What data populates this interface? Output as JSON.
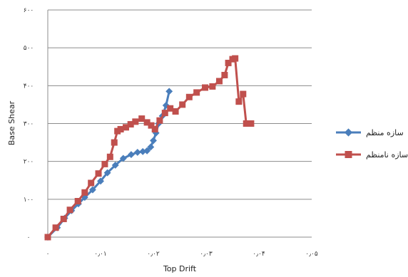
{
  "chart_data": {
    "type": "line",
    "xlabel": "Top Drift",
    "ylabel": "Base Shear",
    "xlim": [
      0,
      0.05
    ],
    "ylim": [
      0,
      600
    ],
    "x_ticks": [
      0,
      0.01,
      0.02,
      0.03,
      0.04,
      0.05
    ],
    "y_ticks": [
      0,
      100,
      200,
      300,
      400,
      500,
      600
    ],
    "x_tick_labels": [
      "۰",
      "۰٫۰۱",
      "۰٫۰۲",
      "۰٫۰۳",
      "۰٫۰۴",
      "۰٫۰۵"
    ],
    "y_tick_labels": [
      "۰",
      "۱۰۰",
      "۲۰۰",
      "۳۰۰",
      "۴۰۰",
      "۵۰۰",
      "۶۰۰"
    ],
    "grid": "horizontal",
    "legend_position": "right",
    "series": [
      {
        "name": "سازه منظم",
        "color": "#4a7ebb",
        "marker": "diamond",
        "points": [
          [
            0,
            0
          ],
          [
            0.0018,
            25
          ],
          [
            0.0032,
            50
          ],
          [
            0.0045,
            70
          ],
          [
            0.0058,
            88
          ],
          [
            0.007,
            105
          ],
          [
            0.0085,
            125
          ],
          [
            0.01,
            148
          ],
          [
            0.0113,
            170
          ],
          [
            0.0128,
            190
          ],
          [
            0.0143,
            208
          ],
          [
            0.0158,
            218
          ],
          [
            0.017,
            224
          ],
          [
            0.018,
            226
          ],
          [
            0.0188,
            228
          ],
          [
            0.0195,
            238
          ],
          [
            0.02,
            255
          ],
          [
            0.0205,
            275
          ],
          [
            0.021,
            300
          ],
          [
            0.0217,
            320
          ],
          [
            0.0224,
            348
          ],
          [
            0.023,
            385
          ]
        ]
      },
      {
        "name": "سازه نامنظم",
        "color": "#c0504d",
        "marker": "square",
        "points": [
          [
            0,
            0
          ],
          [
            0.0015,
            25
          ],
          [
            0.003,
            48
          ],
          [
            0.0042,
            72
          ],
          [
            0.0057,
            95
          ],
          [
            0.007,
            118
          ],
          [
            0.0082,
            143
          ],
          [
            0.0096,
            168
          ],
          [
            0.0108,
            193
          ],
          [
            0.0118,
            212
          ],
          [
            0.0126,
            250
          ],
          [
            0.0132,
            280
          ],
          [
            0.0138,
            285
          ],
          [
            0.0148,
            290
          ],
          [
            0.0157,
            298
          ],
          [
            0.0166,
            305
          ],
          [
            0.0178,
            313
          ],
          [
            0.0188,
            303
          ],
          [
            0.0196,
            295
          ],
          [
            0.0203,
            285
          ],
          [
            0.0212,
            308
          ],
          [
            0.0222,
            328
          ],
          [
            0.0232,
            340
          ],
          [
            0.0242,
            332
          ],
          [
            0.0255,
            350
          ],
          [
            0.0268,
            370
          ],
          [
            0.0282,
            382
          ],
          [
            0.0298,
            395
          ],
          [
            0.0312,
            398
          ],
          [
            0.0325,
            412
          ],
          [
            0.0335,
            428
          ],
          [
            0.0342,
            460
          ],
          [
            0.035,
            470
          ],
          [
            0.0355,
            472
          ],
          [
            0.0362,
            358
          ],
          [
            0.037,
            378
          ],
          [
            0.0376,
            300
          ],
          [
            0.0385,
            300
          ]
        ]
      }
    ]
  }
}
